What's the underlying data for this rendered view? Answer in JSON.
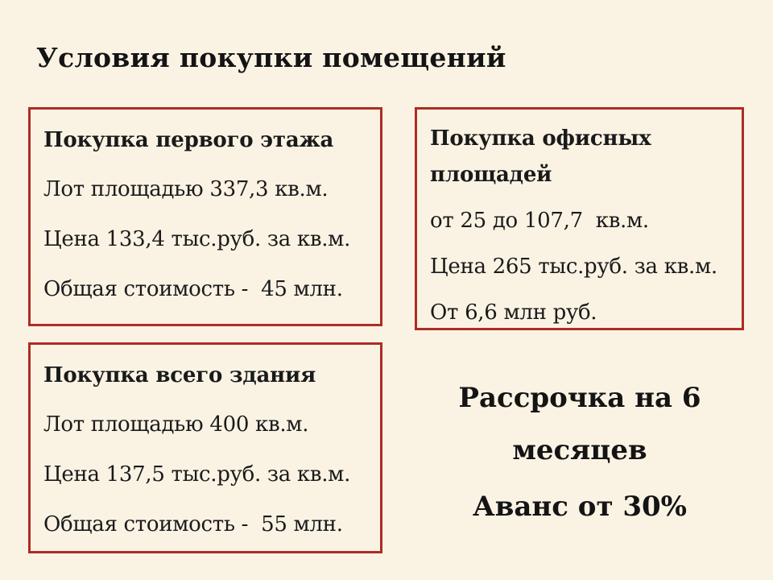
{
  "page": {
    "title": "Условия покупки помещений",
    "background_color": "#faf3e4",
    "card_border_color": "#ae2c23",
    "text_color": "#1a1a1a"
  },
  "boxes": [
    {
      "id": "first-floor",
      "header": "Покупка первого этажа",
      "lines": [
        "Лот площадью 337,3 кв.м.",
        "Цена 133,4 тыс.руб. за кв.м.",
        "Общая стоимость -  45 млн."
      ]
    },
    {
      "id": "office-space",
      "header": "Покупка офисных площадей",
      "lines": [
        "от 25 до 107,7  кв.м.",
        "Цена 265 тыс.руб. за кв.м.",
        "От 6,6 млн руб."
      ]
    },
    {
      "id": "whole-building",
      "header": "Покупка всего здания",
      "lines": [
        "Лот площадью 400 кв.м.",
        "Цена 137,5 тыс.руб. за кв.м.",
        "Общая стоимость -  55 млн."
      ]
    }
  ],
  "offer": {
    "installment": "Рассрочка на 6 месяцев",
    "advance": "Аванс от 30%"
  }
}
